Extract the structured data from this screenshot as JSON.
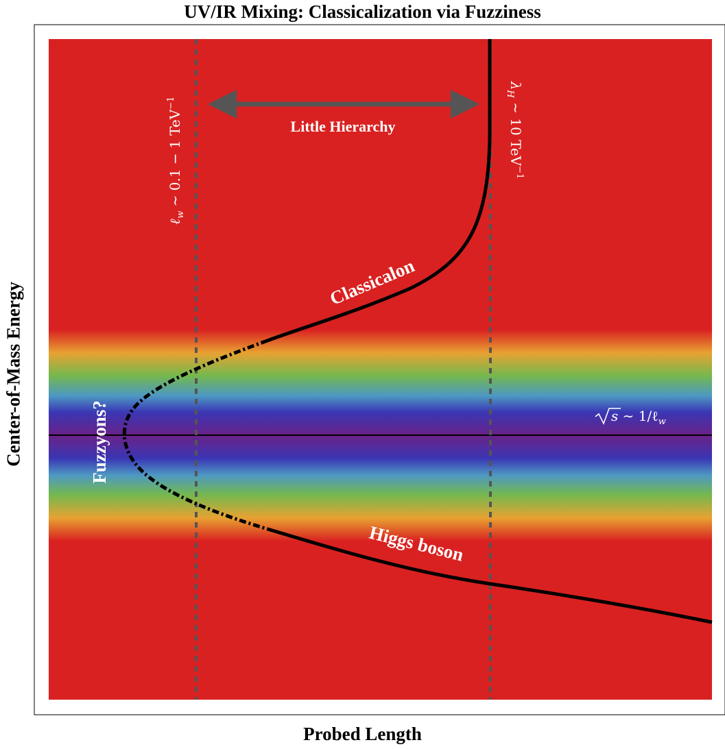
{
  "title": "UV/IR Mixing: Classicalization via Fuzziness",
  "xlabel": "Probed Length",
  "ylabel": "Center-of-Mass Energy",
  "annotations": {
    "little_hierarchy": "Little Hierarchy",
    "classicalon": "Classicalon",
    "higgs": "Higgs boson",
    "fuzzyons": "Fuzzyons?",
    "lw_lhs": "ℓ",
    "lw_sub": "w",
    "lw_rhs": " ∼ 0.1 − 1 TeV",
    "lw_sup": "−1",
    "lh_lhs": "λ",
    "lh_sub": "H",
    "lh_rhs": " ∼ 10 TeV",
    "lh_sup": "−1",
    "sqrt_s": "s",
    "sqrt_rhs": " ∼ 1/ℓ",
    "sqrt_sub": "w"
  },
  "colors": {
    "background": "#d92121",
    "curve": "#000000",
    "reference_lines": "#555555",
    "arrow": "#555555",
    "text": "#ffffff"
  }
}
